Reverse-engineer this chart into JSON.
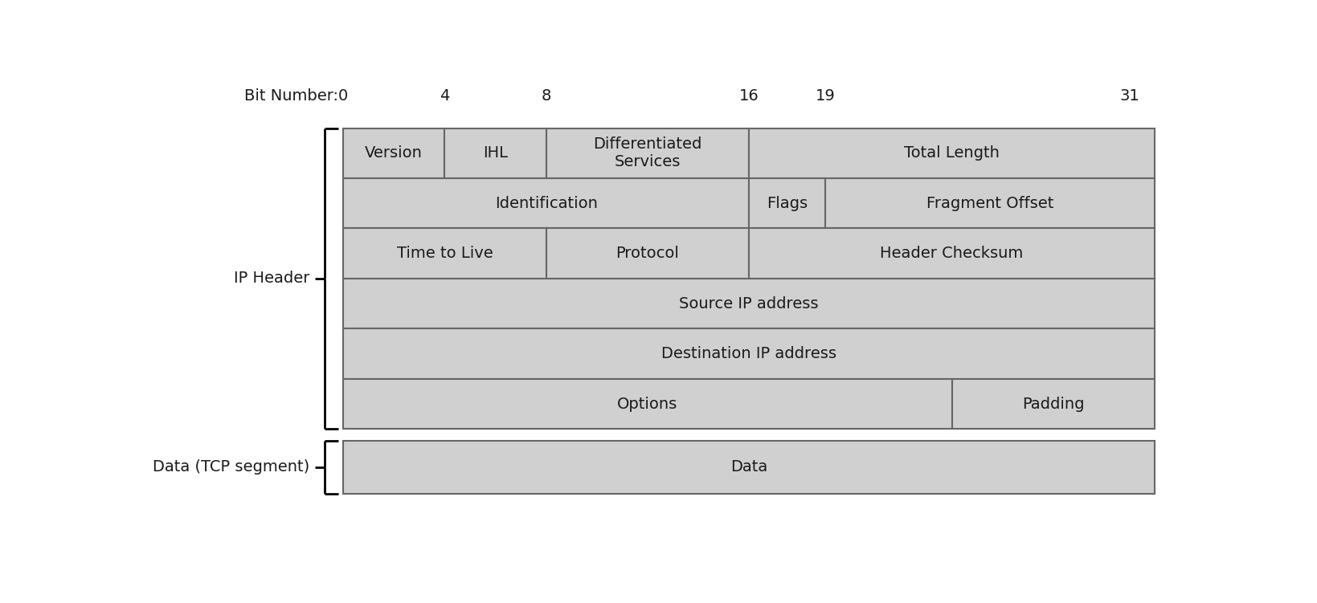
{
  "title": "Bit Number:",
  "bit_labels": [
    "0",
    "4",
    "8",
    "16",
    "19",
    "31"
  ],
  "bit_positions": [
    0,
    4,
    8,
    16,
    19,
    31
  ],
  "total_bits": 32,
  "box_fill_color": "#d0d0d0",
  "box_edge_color": "#666666",
  "background_color": "#ffffff",
  "text_color": "#1a1a1a",
  "font_size": 14,
  "rows": [
    {
      "fields": [
        {
          "label": "Version",
          "start": 0,
          "end": 4
        },
        {
          "label": "IHL",
          "start": 4,
          "end": 8
        },
        {
          "label": "Differentiated\nServices",
          "start": 8,
          "end": 16
        },
        {
          "label": "Total Length",
          "start": 16,
          "end": 32
        }
      ]
    },
    {
      "fields": [
        {
          "label": "Identification",
          "start": 0,
          "end": 16
        },
        {
          "label": "Flags",
          "start": 16,
          "end": 19
        },
        {
          "label": "Fragment Offset",
          "start": 19,
          "end": 32
        }
      ]
    },
    {
      "fields": [
        {
          "label": "Time to Live",
          "start": 0,
          "end": 8
        },
        {
          "label": "Protocol",
          "start": 8,
          "end": 16
        },
        {
          "label": "Header Checksum",
          "start": 16,
          "end": 32
        }
      ]
    },
    {
      "fields": [
        {
          "label": "Source IP address",
          "start": 0,
          "end": 32
        }
      ]
    },
    {
      "fields": [
        {
          "label": "Destination IP address",
          "start": 0,
          "end": 32
        }
      ]
    },
    {
      "fields": [
        {
          "label": "Options",
          "start": 0,
          "end": 24
        },
        {
          "label": "Padding",
          "start": 24,
          "end": 32
        }
      ]
    }
  ],
  "data_row_label": "Data",
  "ip_header_label": "IP Header",
  "data_label": "Data (TCP segment)",
  "options_split_bit": 24,
  "figwidth": 16.39,
  "figheight": 7.51
}
